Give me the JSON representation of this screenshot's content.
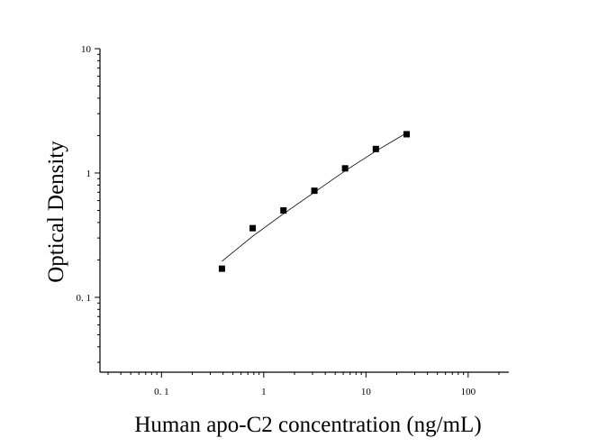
{
  "chart_data": {
    "type": "scatter",
    "xlabel": "Human apo-C2 concentration (ng/mL)",
    "ylabel": "Optical Density",
    "x_scale": "log",
    "y_scale": "log",
    "xlim": [
      0.025,
      250
    ],
    "ylim": [
      0.025,
      10
    ],
    "x_ticks": [
      {
        "value": 0.1,
        "label": "0. 1"
      },
      {
        "value": 1,
        "label": "1"
      },
      {
        "value": 10,
        "label": "10"
      },
      {
        "value": 100,
        "label": "100"
      }
    ],
    "y_ticks": [
      {
        "value": 0.1,
        "label": "0. 1"
      },
      {
        "value": 1,
        "label": "1"
      },
      {
        "value": 10,
        "label": "10"
      }
    ],
    "grid": false,
    "series": [
      {
        "marker": "square",
        "color": "#000000",
        "points": [
          {
            "x": 0.39,
            "y": 0.17
          },
          {
            "x": 0.78,
            "y": 0.36
          },
          {
            "x": 1.56,
            "y": 0.5
          },
          {
            "x": 3.13,
            "y": 0.72
          },
          {
            "x": 6.25,
            "y": 1.09
          },
          {
            "x": 12.5,
            "y": 1.56
          },
          {
            "x": 25,
            "y": 2.05
          }
        ]
      }
    ],
    "fit_line": {
      "color": "#000000",
      "points": [
        {
          "x": 0.39,
          "y": 0.195
        },
        {
          "x": 0.78,
          "y": 0.31
        },
        {
          "x": 1.56,
          "y": 0.47
        },
        {
          "x": 3.13,
          "y": 0.7
        },
        {
          "x": 6.25,
          "y": 1.04
        },
        {
          "x": 12.5,
          "y": 1.5
        },
        {
          "x": 25,
          "y": 2.1
        }
      ]
    }
  }
}
